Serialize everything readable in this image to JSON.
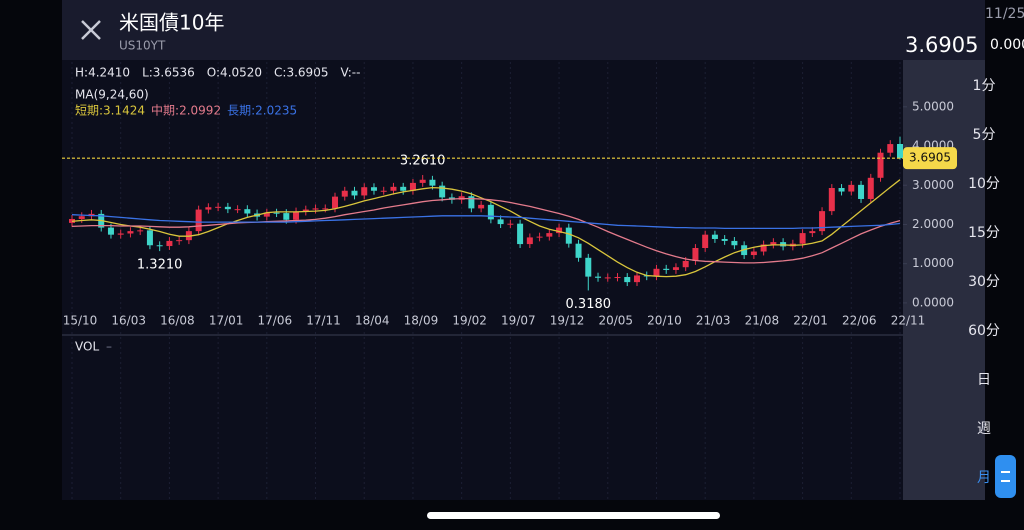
{
  "header": {
    "title": "米国債10年",
    "symbol": "US10YT",
    "date": "11/25",
    "change": "0.000"
  },
  "chart_data": {
    "type": "candlestick",
    "categories": [
      "15/10",
      null,
      null,
      null,
      null,
      "16/03",
      null,
      null,
      null,
      null,
      "16/08",
      null,
      null,
      null,
      null,
      "17/01",
      null,
      null,
      null,
      null,
      "17/06",
      null,
      null,
      null,
      null,
      "17/11",
      null,
      null,
      null,
      null,
      "18/04",
      null,
      null,
      null,
      null,
      "18/09",
      null,
      null,
      null,
      null,
      "19/02",
      null,
      null,
      null,
      null,
      "19/07",
      null,
      null,
      null,
      null,
      "19/12",
      null,
      null,
      null,
      null,
      "20/05",
      null,
      null,
      null,
      null,
      "20/10",
      null,
      null,
      null,
      null,
      "21/03",
      null,
      null,
      null,
      null,
      "21/08",
      null,
      null,
      null,
      null,
      "22/01",
      null,
      null,
      null,
      null,
      "22/06",
      null,
      null,
      null,
      null,
      "22/11"
    ],
    "open": [
      2.04,
      2.14,
      2.21,
      2.27,
      1.92,
      1.74,
      1.77,
      1.83,
      1.85,
      1.47,
      1.45,
      1.58,
      1.6,
      1.83,
      2.38,
      2.44,
      2.45,
      2.39,
      2.39,
      2.28,
      2.2,
      2.3,
      2.29,
      2.12,
      2.33,
      2.38,
      2.41,
      2.41,
      2.71,
      2.86,
      2.74,
      2.95,
      2.86,
      2.86,
      2.96,
      2.86,
      3.06,
      3.14,
      2.99,
      2.69,
      2.63,
      2.72,
      2.41,
      2.5,
      2.13,
      2.01,
      2.02,
      1.5,
      1.67,
      1.69,
      1.78,
      1.92,
      1.51,
      1.15,
      0.67,
      0.64,
      0.65,
      0.66,
      0.53,
      0.7,
      0.68,
      0.87,
      0.84,
      0.91,
      1.07,
      1.4,
      1.74,
      1.63,
      1.58,
      1.47,
      1.22,
      1.31,
      1.49,
      1.55,
      1.44,
      1.51,
      1.78,
      1.83,
      2.34,
      2.93,
      2.84,
      3.01,
      2.65,
      3.19,
      3.83,
      4.052
    ],
    "high": [
      2.24,
      2.31,
      2.37,
      2.37,
      2.02,
      1.87,
      1.93,
      1.95,
      1.95,
      1.57,
      1.68,
      1.7,
      1.93,
      2.48,
      2.54,
      2.55,
      2.55,
      2.49,
      2.49,
      2.38,
      2.4,
      2.4,
      2.39,
      2.43,
      2.48,
      2.51,
      2.51,
      2.81,
      2.96,
      2.96,
      3.05,
      3.05,
      2.96,
      3.06,
      3.06,
      3.16,
      3.261,
      3.24,
      3.09,
      2.79,
      2.82,
      2.82,
      2.6,
      2.6,
      2.23,
      2.12,
      2.12,
      1.77,
      1.79,
      1.88,
      2.02,
      2.02,
      1.61,
      1.25,
      0.77,
      0.75,
      0.76,
      0.76,
      0.8,
      0.8,
      0.97,
      0.97,
      1.01,
      1.17,
      1.5,
      1.84,
      1.84,
      1.73,
      1.68,
      1.57,
      1.41,
      1.59,
      1.65,
      1.65,
      1.61,
      1.88,
      1.93,
      2.44,
      3.03,
      3.03,
      3.11,
      3.11,
      3.29,
      3.93,
      4.15,
      4.241
    ],
    "low": [
      1.94,
      2.04,
      2.11,
      1.82,
      1.64,
      1.64,
      1.67,
      1.73,
      1.37,
      1.321,
      1.35,
      1.48,
      1.5,
      1.73,
      2.28,
      2.34,
      2.29,
      2.29,
      2.18,
      2.1,
      2.1,
      2.19,
      2.02,
      2.02,
      2.23,
      2.28,
      2.31,
      2.31,
      2.61,
      2.64,
      2.64,
      2.76,
      2.76,
      2.76,
      2.76,
      2.76,
      2.96,
      2.89,
      2.59,
      2.53,
      2.53,
      2.31,
      2.31,
      2.03,
      1.91,
      1.91,
      1.4,
      1.4,
      1.57,
      1.59,
      1.68,
      1.41,
      1.05,
      0.318,
      0.54,
      0.54,
      0.55,
      0.43,
      0.43,
      0.58,
      0.58,
      0.74,
      0.74,
      0.81,
      0.97,
      1.3,
      1.53,
      1.48,
      1.37,
      1.12,
      1.12,
      1.21,
      1.39,
      1.34,
      1.34,
      1.41,
      1.68,
      1.73,
      2.24,
      2.74,
      2.74,
      2.55,
      2.55,
      3.09,
      3.73,
      3.6536
    ],
    "close": [
      2.14,
      2.21,
      2.27,
      1.92,
      1.74,
      1.77,
      1.83,
      1.85,
      1.47,
      1.45,
      1.58,
      1.6,
      1.83,
      2.38,
      2.44,
      2.45,
      2.39,
      2.39,
      2.28,
      2.2,
      2.3,
      2.29,
      2.12,
      2.33,
      2.38,
      2.41,
      2.41,
      2.71,
      2.86,
      2.74,
      2.95,
      2.86,
      2.86,
      2.96,
      2.86,
      3.06,
      3.14,
      2.99,
      2.69,
      2.63,
      2.72,
      2.41,
      2.5,
      2.13,
      2.01,
      2.02,
      1.5,
      1.67,
      1.69,
      1.78,
      1.92,
      1.51,
      1.15,
      0.67,
      0.64,
      0.65,
      0.66,
      0.53,
      0.7,
      0.68,
      0.87,
      0.84,
      0.91,
      1.07,
      1.4,
      1.74,
      1.63,
      1.58,
      1.47,
      1.22,
      1.31,
      1.49,
      1.55,
      1.44,
      1.51,
      1.78,
      1.83,
      2.34,
      2.93,
      2.84,
      3.01,
      2.65,
      3.19,
      3.83,
      4.05,
      3.6905
    ],
    "up_color": "#e8304a",
    "down_color": "#3fd5c9",
    "ylim": [
      -0.13,
      5.48
    ],
    "yticks": [
      {
        "value": 0,
        "label": "0.0000"
      },
      {
        "value": 1,
        "label": "1.0000"
      },
      {
        "value": 2,
        "label": "2.0000"
      },
      {
        "value": 3,
        "label": "3.0000"
      },
      {
        "value": 4,
        "label": "4.0000"
      },
      {
        "value": 5,
        "label": "5.0000"
      }
    ],
    "ma_title": "MA(9,24,60)",
    "series": [
      {
        "name": "短期:3.1424",
        "color": "#d9c53c",
        "values": [
          2.08,
          2.1,
          2.12,
          2.1,
          2.05,
          2.0,
          1.96,
          1.93,
          1.88,
          1.82,
          1.75,
          1.7,
          1.7,
          1.74,
          1.82,
          1.92,
          2.02,
          2.1,
          2.18,
          2.24,
          2.3,
          2.32,
          2.32,
          2.32,
          2.33,
          2.34,
          2.36,
          2.4,
          2.46,
          2.53,
          2.6,
          2.66,
          2.72,
          2.78,
          2.83,
          2.87,
          2.91,
          2.94,
          2.93,
          2.9,
          2.85,
          2.78,
          2.68,
          2.58,
          2.46,
          2.34,
          2.2,
          2.08,
          1.96,
          1.88,
          1.82,
          1.76,
          1.66,
          1.52,
          1.36,
          1.2,
          1.04,
          0.9,
          0.78,
          0.7,
          0.68,
          0.67,
          0.68,
          0.72,
          0.8,
          0.92,
          1.05,
          1.17,
          1.28,
          1.36,
          1.42,
          1.46,
          1.48,
          1.48,
          1.47,
          1.48,
          1.52,
          1.58,
          1.75,
          1.95,
          2.15,
          2.35,
          2.55,
          2.75,
          2.95,
          3.1424
        ]
      },
      {
        "name": "中期:2.0992",
        "color": "#e47b8c",
        "values": [
          1.95,
          1.96,
          1.97,
          1.97,
          1.97,
          1.96,
          1.96,
          1.96,
          1.95,
          1.94,
          1.93,
          1.93,
          1.94,
          1.96,
          1.98,
          2.0,
          2.02,
          2.04,
          2.05,
          2.06,
          2.07,
          2.08,
          2.09,
          2.1,
          2.11,
          2.13,
          2.16,
          2.2,
          2.25,
          2.29,
          2.33,
          2.37,
          2.42,
          2.46,
          2.5,
          2.54,
          2.58,
          2.61,
          2.63,
          2.65,
          2.66,
          2.66,
          2.65,
          2.63,
          2.6,
          2.56,
          2.51,
          2.46,
          2.4,
          2.34,
          2.28,
          2.21,
          2.13,
          2.03,
          1.93,
          1.82,
          1.72,
          1.62,
          1.52,
          1.42,
          1.33,
          1.25,
          1.18,
          1.12,
          1.08,
          1.06,
          1.05,
          1.04,
          1.03,
          1.02,
          1.02,
          1.03,
          1.05,
          1.07,
          1.1,
          1.14,
          1.2,
          1.28,
          1.4,
          1.52,
          1.64,
          1.76,
          1.86,
          1.95,
          2.03,
          2.0992
        ]
      },
      {
        "name": "長期:2.0235",
        "color": "#3a72e6",
        "values": [
          2.25,
          2.24,
          2.23,
          2.22,
          2.2,
          2.18,
          2.16,
          2.14,
          2.12,
          2.1,
          2.09,
          2.08,
          2.07,
          2.06,
          2.06,
          2.06,
          2.06,
          2.06,
          2.06,
          2.06,
          2.06,
          2.06,
          2.06,
          2.07,
          2.08,
          2.09,
          2.1,
          2.11,
          2.12,
          2.13,
          2.14,
          2.15,
          2.16,
          2.17,
          2.18,
          2.19,
          2.2,
          2.21,
          2.22,
          2.22,
          2.22,
          2.22,
          2.22,
          2.21,
          2.2,
          2.19,
          2.18,
          2.16,
          2.14,
          2.12,
          2.1,
          2.08,
          2.06,
          2.04,
          2.02,
          2.0,
          1.98,
          1.97,
          1.96,
          1.95,
          1.94,
          1.93,
          1.92,
          1.92,
          1.91,
          1.91,
          1.91,
          1.9,
          1.9,
          1.9,
          1.9,
          1.9,
          1.9,
          1.9,
          1.9,
          1.91,
          1.91,
          1.92,
          1.93,
          1.94,
          1.95,
          1.96,
          1.97,
          1.98,
          2.0,
          2.0235
        ]
      }
    ],
    "ohlc_stats": [
      "H:4.2410",
      "L:3.6536",
      "O:4.0520",
      "C:3.6905",
      "V:--"
    ],
    "last_price": 3.6905,
    "annotations": [
      {
        "label": "3.2610",
        "value": 3.261
      },
      {
        "label": "1.3210",
        "value": 1.321
      },
      {
        "label": "0.3180",
        "value": 0.318
      }
    ],
    "volume_title": "VOL",
    "volume_value": "–"
  },
  "intervals": [
    "1分",
    "5分",
    "10分",
    "15分",
    "30分",
    "60分",
    "日",
    "週",
    "月"
  ]
}
